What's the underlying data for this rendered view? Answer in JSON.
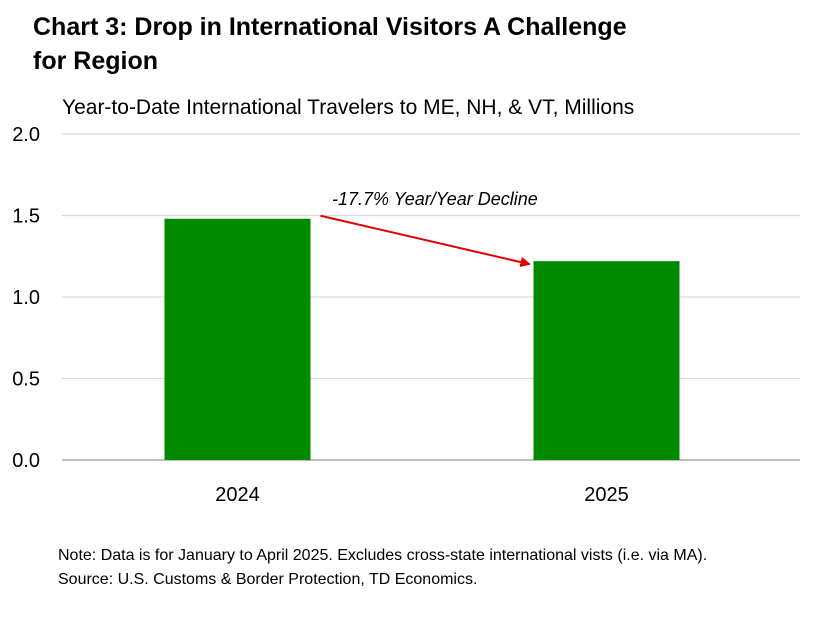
{
  "chart_data": {
    "type": "bar",
    "title": "Chart 3: Drop in International Visitors A Challenge for Region",
    "subtitle": "Year-to-Date International Travelers to ME, NH, & VT, Millions",
    "categories": [
      "2024",
      "2025"
    ],
    "values": [
      1.48,
      1.22
    ],
    "ylim": [
      0,
      2.0
    ],
    "yticks": [
      "0.0",
      "0.5",
      "1.0",
      "1.5",
      "2.0"
    ],
    "ytick_values": [
      0,
      0.5,
      1.0,
      1.5,
      2.0
    ],
    "grid": true,
    "bar_color": "#008a00",
    "annotation": {
      "text": "-17.7% Year/Year Decline",
      "arrow_color": "#e00000"
    }
  },
  "notes": {
    "note": "Note: Data is for January to April 2025. Excludes cross-state international vists (i.e. via MA).",
    "source": "Source: U.S. Customs & Border Protection, TD Economics."
  }
}
